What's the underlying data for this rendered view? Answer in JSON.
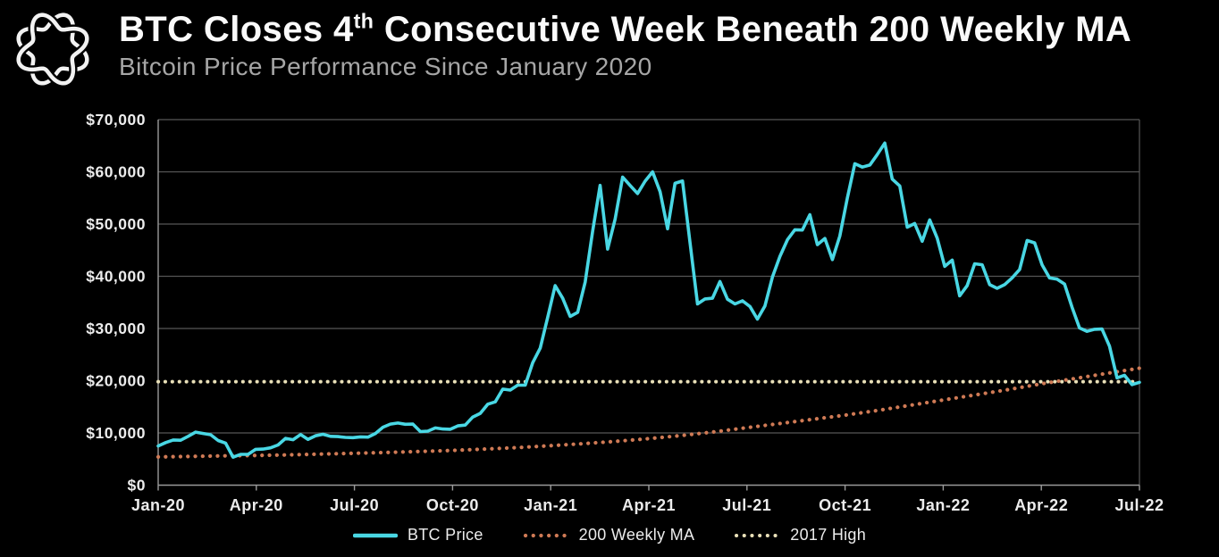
{
  "header": {
    "title_main": "BTC Closes 4",
    "title_sup": "th",
    "title_rest": " Consecutive Week Beneath 200 Weekly MA",
    "subtitle": "Bitcoin Price Performance Since January 2020"
  },
  "colors": {
    "background": "#000000",
    "btc_line": "#49d7e4",
    "ma_dots": "#cf7a55",
    "high_dots": "#e9e0b8",
    "gridline": "#565656",
    "axis": "#9a9a9a",
    "tick_label": "#ececec",
    "title": "#fafafa",
    "subtitle": "#a6a6a6"
  },
  "chart_data": {
    "type": "line",
    "title": "BTC Closes 4th Consecutive Week Beneath 200 Weekly MA",
    "subtitle": "Bitcoin Price Performance Since January 2020",
    "xlabel": "",
    "ylabel": "",
    "ylim": [
      0,
      70000
    ],
    "grid": "horizontal",
    "legend_position": "bottom",
    "x_ticks": [
      "Jan-20",
      "Apr-20",
      "Jul-20",
      "Oct-20",
      "Jan-21",
      "Apr-21",
      "Jul-21",
      "Oct-21",
      "Jan-22",
      "Apr-22",
      "Jul-22"
    ],
    "y_ticks": [
      {
        "value": 0,
        "label": "$0"
      },
      {
        "value": 10000,
        "label": "$10,000"
      },
      {
        "value": 20000,
        "label": "$20,000"
      },
      {
        "value": 30000,
        "label": "$30,000"
      },
      {
        "value": 40000,
        "label": "$40,000"
      },
      {
        "value": 50000,
        "label": "$50,000"
      },
      {
        "value": 60000,
        "label": "$60,000"
      },
      {
        "value": 70000,
        "label": "$70,000"
      }
    ],
    "y_gridlines": [
      10000,
      30000,
      40000,
      50000,
      60000,
      70000
    ],
    "series": [
      {
        "name": "BTC Price",
        "color": "#49d7e4",
        "line_style": "solid",
        "x_unit": "weekly from Jan-2020 to Jul-2022",
        "values": [
          7500,
          8150,
          8650,
          8600,
          9350,
          10150,
          9900,
          9650,
          8550,
          8050,
          5350,
          5900,
          5900,
          6850,
          6900,
          7150,
          7700,
          8950,
          8700,
          9700,
          8750,
          9450,
          9750,
          9350,
          9300,
          9150,
          9100,
          9250,
          9200,
          9900,
          11100,
          11700,
          11900,
          11650,
          11700,
          10250,
          10350,
          10950,
          10750,
          10700,
          11350,
          11500,
          13050,
          13750,
          15500,
          15950,
          18400,
          18200,
          19150,
          19150,
          23450,
          26250,
          32100,
          38200,
          35800,
          32300,
          33100,
          38900,
          48600,
          57400,
          45200,
          50950,
          59000,
          57400,
          55850,
          58200,
          60000,
          56200,
          49100,
          57800,
          58250,
          46450,
          34700,
          35650,
          35800,
          39000,
          35600,
          34700,
          35300,
          34200,
          31800,
          34300,
          39850,
          43800,
          47000,
          48900,
          48850,
          51800,
          46050,
          47250,
          43200,
          47700,
          54950,
          61550,
          60900,
          61300,
          63300,
          65500,
          58600,
          57300,
          49400,
          50100,
          46700,
          50800,
          47300,
          41900,
          43100,
          36250,
          38200,
          42400,
          42200,
          38400,
          37700,
          38400,
          39700,
          41300,
          46850,
          46400,
          42200,
          39700,
          39450,
          38500,
          34050,
          30100,
          29450,
          29850,
          29900,
          26600,
          20550,
          21050,
          19250,
          19700
        ]
      },
      {
        "name": "200 Weekly MA",
        "color": "#cf7a55",
        "line_style": "dotted",
        "x_unit": "monthly from Jan-2020 to Jul-2022",
        "values": [
          5400,
          5500,
          5600,
          5700,
          5800,
          5950,
          6100,
          6250,
          6450,
          6650,
          6900,
          7200,
          7550,
          7950,
          8400,
          8900,
          9500,
          10200,
          11000,
          11800,
          12600,
          13400,
          14300,
          15300,
          16300,
          17300,
          18300,
          19400,
          20400,
          21400,
          22400
        ]
      },
      {
        "name": "2017 High",
        "color": "#e9e0b8",
        "line_style": "dotted",
        "x_unit": "constant",
        "value": 19800
      }
    ]
  }
}
